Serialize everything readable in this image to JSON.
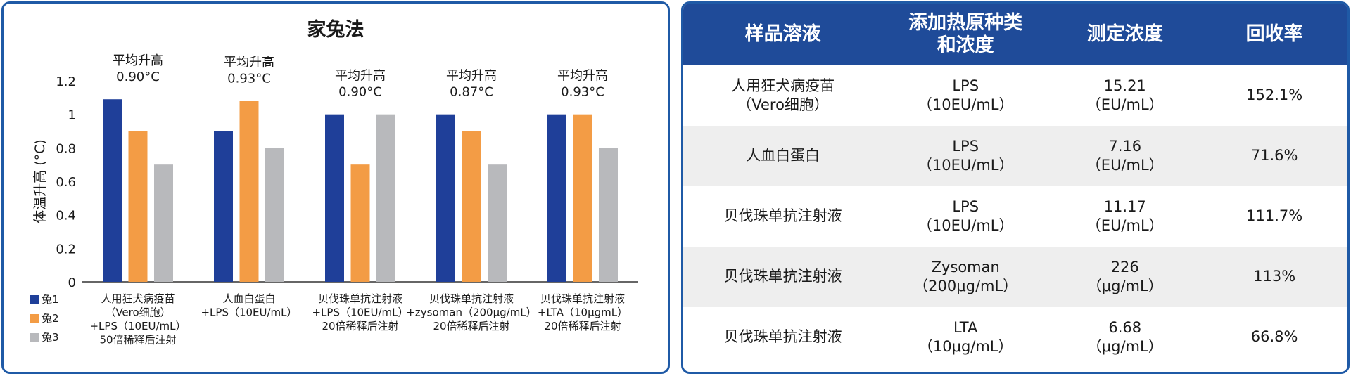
{
  "chart_data": {
    "type": "bar",
    "title": "家兔法",
    "ylabel": "体温升高 (°C)",
    "xlabel": "",
    "ylim": [
      0,
      1.2
    ],
    "yticks": [
      0,
      0.2,
      0.4,
      0.6,
      0.8,
      1,
      1.2
    ],
    "grid": false,
    "legend_position": "left-bottom",
    "categories": [
      [
        "人用狂犬病疫苗",
        "（Vero细胞）",
        "+LPS（10EU/mL）",
        "50倍稀释后注射"
      ],
      [
        "人血白蛋白",
        "+LPS（10EU/mL）"
      ],
      [
        "贝伐珠单抗注射液",
        "+LPS（10EU/mL）",
        "20倍稀释后注射"
      ],
      [
        "贝伐珠单抗注射液",
        "+zysoman（200μg/mL）",
        "20倍稀释后注射"
      ],
      [
        "贝伐珠单抗注射液",
        "+LTA（10μgmL）",
        "20倍稀释后注射"
      ]
    ],
    "annotations": [
      [
        "平均升高",
        "0.90°C"
      ],
      [
        "平均升高",
        "0.93°C"
      ],
      [
        "平均升高",
        "0.90°C"
      ],
      [
        "平均升高",
        "0.87°C"
      ],
      [
        "平均升高",
        "0.93°C"
      ]
    ],
    "series": [
      {
        "name": "兔1",
        "color": "#1f3f99",
        "values": [
          1.09,
          0.9,
          1.0,
          1.0,
          1.0
        ]
      },
      {
        "name": "兔2",
        "color": "#f39c45",
        "values": [
          0.9,
          1.08,
          0.7,
          0.9,
          1.0
        ]
      },
      {
        "name": "兔3",
        "color": "#b8b9bc",
        "values": [
          0.7,
          0.8,
          1.0,
          0.7,
          0.8
        ]
      }
    ]
  },
  "table": {
    "headers": [
      [
        "样品溶液"
      ],
      [
        "添加热原种类",
        "和浓度"
      ],
      [
        "测定浓度"
      ],
      [
        "回收率"
      ]
    ],
    "rows": [
      [
        [
          "人用狂犬病疫苗",
          "（Vero细胞）"
        ],
        [
          "LPS",
          "（10EU/mL）"
        ],
        [
          "15.21",
          "（EU/mL）"
        ],
        [
          "152.1%"
        ]
      ],
      [
        [
          "人血白蛋白"
        ],
        [
          "LPS",
          "（10EU/mL）"
        ],
        [
          "7.16",
          "（EU/mL）"
        ],
        [
          "71.6%"
        ]
      ],
      [
        [
          "贝伐珠单抗注射液"
        ],
        [
          "LPS",
          "（10EU/mL）"
        ],
        [
          "11.17",
          "（EU/mL）"
        ],
        [
          "111.7%"
        ]
      ],
      [
        [
          "贝伐珠单抗注射液"
        ],
        [
          "Zysoman",
          "（200μg/mL）"
        ],
        [
          "226",
          "（μg/mL）"
        ],
        [
          "113%"
        ]
      ],
      [
        [
          "贝伐珠单抗注射液"
        ],
        [
          "LTA",
          "（10μg/mL）"
        ],
        [
          "6.68",
          "（μg/mL）"
        ],
        [
          "66.8%"
        ]
      ]
    ]
  }
}
